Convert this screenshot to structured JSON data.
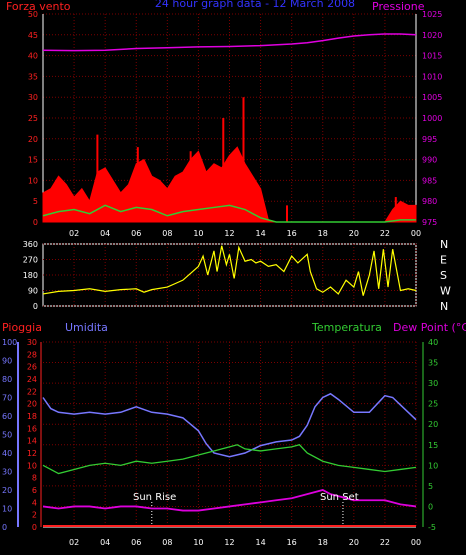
{
  "header": {
    "left_label": "Forza vento",
    "center_title": "24 hour graph data - 12 March 2008",
    "right_label": "Pressione"
  },
  "panel3": {
    "pioggia_label": "Pioggia",
    "umidita_label": "Umidita",
    "temperatura_label": "Temperatura",
    "dewpoint_label": "Dew Point (°C)",
    "sun_rise_label": "Sun Rise",
    "sun_set_label": "Sun Set"
  },
  "direction_labels": [
    "N",
    "W",
    "S",
    "E",
    "N"
  ],
  "colors": {
    "background": "#000000",
    "grid": "#7a0000",
    "wind_axis": "#ff2020",
    "pressure": "#e000e0",
    "wind_fill": "#ff0000",
    "gust_green": "#33cc33",
    "speed_white": "#ffffff",
    "direction": "#ffff00",
    "humidity": "#7777ff",
    "temperature": "#33cc33",
    "dew_point": "#dd00dd",
    "rain": "#ff2020",
    "title_blue": "#3333ff"
  },
  "chart_data": [
    {
      "type": "area",
      "title": "24 hour graph data - 12 March 2008",
      "x_tick_labels": [
        "02",
        "04",
        "06",
        "08",
        "10",
        "12",
        "14",
        "16",
        "18",
        "20",
        "22",
        "00"
      ],
      "y_left_ticks": [
        0,
        5,
        10,
        15,
        20,
        25,
        30,
        35,
        40,
        45,
        50
      ],
      "y_left_label": "Forza vento",
      "y_right_ticks": [
        975,
        980,
        985,
        990,
        995,
        1000,
        1005,
        1010,
        1015,
        1020,
        1025
      ],
      "y_right_label": "Pressione",
      "series": [
        {
          "name": "Pressione",
          "x_hours": [
            0,
            2,
            4,
            6,
            8,
            10,
            12,
            14,
            16,
            17,
            18,
            19,
            20,
            21,
            22,
            23,
            24
          ],
          "values": [
            1016.3,
            1016.2,
            1016.3,
            1016.7,
            1016.9,
            1017.1,
            1017.2,
            1017.4,
            1017.8,
            1018.1,
            1018.6,
            1019.2,
            1019.7,
            1020.0,
            1020.2,
            1020.2,
            1020.0
          ]
        },
        {
          "name": "Forza vento",
          "x_hours": [
            0,
            0.5,
            1,
            1.5,
            2,
            2.5,
            3,
            3.5,
            4,
            4.5,
            5,
            5.5,
            6,
            6.5,
            7,
            7.5,
            8,
            8.5,
            9,
            9.5,
            10,
            10.5,
            11,
            11.5,
            12,
            12.5,
            13,
            13.5,
            14,
            14.5,
            15,
            16,
            17,
            18,
            19,
            20,
            21,
            22,
            22.5,
            23,
            23.5,
            24
          ],
          "values": [
            7,
            8,
            11,
            9,
            6,
            8,
            5,
            12,
            13,
            10,
            7,
            9,
            14,
            15,
            11,
            10,
            8,
            11,
            12,
            15,
            17,
            12,
            14,
            13,
            16,
            18,
            14,
            11,
            8,
            0.5,
            0,
            0,
            0,
            0,
            0,
            0,
            0,
            0,
            3,
            5,
            4,
            4
          ]
        },
        {
          "name": "Raffica",
          "x_hours": [
            3.5,
            6.1,
            9.5,
            11.6,
            12.9,
            15.7,
            22.7
          ],
          "values": [
            21,
            18,
            17,
            25,
            30,
            4,
            6
          ]
        },
        {
          "name": "Media",
          "x_hours": [
            0,
            1,
            2,
            3,
            4,
            5,
            6,
            7,
            8,
            9,
            10,
            11,
            12,
            13,
            14,
            15,
            16,
            18,
            20,
            22,
            23,
            24
          ],
          "values": [
            1.5,
            2.5,
            3,
            2,
            4,
            2.5,
            3.5,
            3,
            1.5,
            2.5,
            3,
            3.5,
            4,
            3,
            1,
            0,
            0,
            0,
            0,
            0,
            0.5,
            0.5
          ]
        }
      ],
      "xlim_hours": [
        0,
        24
      ],
      "ylim_left": [
        0,
        50
      ],
      "ylim_right": [
        975,
        1025
      ],
      "grid": true
    },
    {
      "type": "line",
      "y_ticks": [
        0,
        90,
        180,
        270,
        360
      ],
      "y_right_labels": [
        "N",
        "W",
        "S",
        "E",
        "N"
      ],
      "series": [
        {
          "name": "Direzione",
          "x_hours": [
            0,
            1,
            2,
            3,
            4,
            5,
            6,
            6.5,
            7,
            8,
            8.5,
            9,
            9.5,
            10,
            10.3,
            10.6,
            11,
            11.2,
            11.5,
            11.8,
            12,
            12.3,
            12.6,
            13,
            13.4,
            13.7,
            14,
            14.5,
            15,
            15.5,
            16,
            16.4,
            17,
            17.2,
            17.6,
            18,
            18.5,
            19,
            19.5,
            20,
            20.3,
            20.6,
            21,
            21.3,
            21.6,
            21.9,
            22.2,
            22.5,
            23,
            23.5,
            24
          ],
          "values": [
            70,
            85,
            90,
            100,
            85,
            95,
            100,
            80,
            95,
            110,
            130,
            150,
            190,
            230,
            290,
            180,
            320,
            200,
            350,
            240,
            300,
            160,
            340,
            260,
            270,
            250,
            260,
            230,
            240,
            200,
            290,
            250,
            300,
            200,
            100,
            80,
            110,
            70,
            150,
            110,
            200,
            60,
            180,
            320,
            100,
            330,
            110,
            330,
            90,
            100,
            90
          ]
        }
      ],
      "xlim_hours": [
        0,
        24
      ],
      "ylim": [
        0,
        360
      ],
      "grid": true
    },
    {
      "type": "line",
      "x_tick_labels": [
        "02",
        "04",
        "06",
        "08",
        "10",
        "12",
        "14",
        "16",
        "18",
        "20",
        "22",
        "00"
      ],
      "y_left_ticks": [
        0,
        10,
        20,
        30,
        40,
        50,
        60,
        70,
        80,
        90,
        100
      ],
      "y_left_label": "Umidita",
      "y_left2_ticks": [
        0,
        2,
        4,
        6,
        8,
        10,
        12,
        14,
        16,
        18,
        20,
        22,
        24,
        26,
        28,
        30
      ],
      "y_left2_label": "Pioggia",
      "y_right_ticks": [
        -5,
        0,
        5,
        10,
        15,
        20,
        25,
        30,
        35,
        40
      ],
      "y_right_label": "Dew Point (°C)",
      "series": [
        {
          "name": "Umidita",
          "x_hours": [
            0,
            0.5,
            1,
            2,
            3,
            4,
            5,
            6,
            7,
            8,
            9,
            10,
            10.5,
            11,
            12,
            13,
            14,
            15,
            16,
            16.5,
            17,
            17.5,
            18,
            18.5,
            19,
            20,
            21,
            22,
            22.5,
            23,
            24
          ],
          "values": [
            70,
            64,
            62,
            61,
            62,
            61,
            62,
            65,
            62,
            61,
            59,
            52,
            45,
            40,
            38,
            40,
            44,
            46,
            47,
            49,
            55,
            65,
            70,
            72,
            69,
            62,
            62,
            71,
            70,
            66,
            58
          ]
        },
        {
          "name": "Temperatura",
          "x_hours": [
            0,
            1,
            2,
            3,
            4,
            5,
            6,
            7,
            8,
            9,
            10,
            11,
            12,
            12.5,
            13,
            14,
            15,
            16,
            16.5,
            17,
            18,
            19,
            20,
            21,
            22,
            23,
            24
          ],
          "values": [
            10,
            8,
            9,
            10,
            10.5,
            10,
            11,
            10.5,
            11,
            11.5,
            12.5,
            13.5,
            14.5,
            15,
            14,
            13.5,
            14,
            14.5,
            15,
            13,
            11,
            10,
            9.5,
            9,
            8.5,
            9,
            9.5
          ]
        },
        {
          "name": "Dew Point",
          "x_hours": [
            0,
            1,
            2,
            3,
            4,
            5,
            6,
            7,
            8,
            9,
            10,
            11,
            12,
            13,
            14,
            15,
            16,
            17,
            18,
            18.5,
            19,
            20,
            21,
            22,
            23,
            24
          ],
          "values": [
            0,
            -0.5,
            0,
            0,
            -0.5,
            0,
            0,
            -0.5,
            -0.5,
            -1,
            -1,
            -0.5,
            0,
            0.5,
            1,
            1.5,
            2,
            3,
            4,
            3,
            2.5,
            1.5,
            1.5,
            1.5,
            0.5,
            0
          ]
        },
        {
          "name": "Pioggia",
          "x_hours": [
            0,
            24
          ],
          "values": [
            0,
            0
          ]
        }
      ],
      "annotations": [
        {
          "label": "Sun Rise",
          "x_hours": 7
        },
        {
          "label": "Sun Set",
          "x_hours": 19.3
        }
      ],
      "xlim_hours": [
        0,
        24
      ],
      "ylim_left": [
        0,
        100
      ],
      "ylim_left2": [
        0,
        30
      ],
      "ylim_right": [
        -5,
        40
      ],
      "grid": true
    }
  ]
}
